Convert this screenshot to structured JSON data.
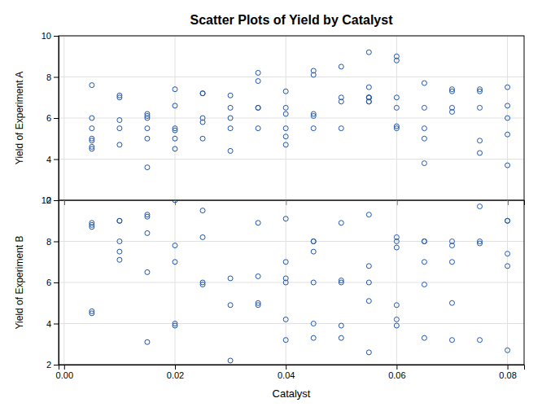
{
  "chart_data": [
    {
      "type": "scatter",
      "title": "Scatter Plots of Yield by Catalyst",
      "ylabel": "Yield of Experiment A",
      "x": [
        0.005,
        0.005,
        0.005,
        0.005,
        0.005,
        0.005,
        0.005,
        0.01,
        0.01,
        0.01,
        0.01,
        0.01,
        0.015,
        0.015,
        0.015,
        0.015,
        0.015,
        0.015,
        0.02,
        0.02,
        0.02,
        0.02,
        0.02,
        0.02,
        0.025,
        0.025,
        0.025,
        0.025,
        0.025,
        0.03,
        0.03,
        0.03,
        0.03,
        0.03,
        0.035,
        0.035,
        0.035,
        0.035,
        0.035,
        0.04,
        0.04,
        0.04,
        0.04,
        0.04,
        0.04,
        0.045,
        0.045,
        0.045,
        0.045,
        0.045,
        0.05,
        0.05,
        0.05,
        0.05,
        0.055,
        0.055,
        0.055,
        0.055,
        0.055,
        0.055,
        0.055,
        0.06,
        0.06,
        0.06,
        0.06,
        0.06,
        0.06,
        0.065,
        0.065,
        0.065,
        0.065,
        0.065,
        0.07,
        0.07,
        0.07,
        0.07,
        0.075,
        0.075,
        0.075,
        0.075,
        0.075,
        0.08,
        0.08,
        0.08,
        0.08,
        0.08
      ],
      "values": [
        7.6,
        6.0,
        5.5,
        5.0,
        4.9,
        4.6,
        4.5,
        7.1,
        7.0,
        5.9,
        5.5,
        4.7,
        6.2,
        6.1,
        6.0,
        5.5,
        5.0,
        3.6,
        7.4,
        6.6,
        5.5,
        5.4,
        5.0,
        4.5,
        7.2,
        7.2,
        6.0,
        5.8,
        5.0,
        7.1,
        6.5,
        6.0,
        5.5,
        4.4,
        8.2,
        7.8,
        6.5,
        6.5,
        5.5,
        7.3,
        6.5,
        6.2,
        5.5,
        5.1,
        4.7,
        8.3,
        8.1,
        6.2,
        6.1,
        5.5,
        8.5,
        7.0,
        6.8,
        5.5,
        9.2,
        7.5,
        7.0,
        7.0,
        7.0,
        6.8,
        6.8,
        9.0,
        8.8,
        7.0,
        6.5,
        5.6,
        5.5,
        7.7,
        6.5,
        5.5,
        5.0,
        3.8,
        7.4,
        7.3,
        6.5,
        6.3,
        7.4,
        7.3,
        6.5,
        4.9,
        4.3,
        7.5,
        6.6,
        6.0,
        5.2,
        3.7
      ],
      "color": "#2255aa",
      "marker": "open-circle",
      "xlim": [
        -0.001,
        0.083
      ],
      "xticks": [
        0.0,
        0.02,
        0.04,
        0.06,
        0.08
      ],
      "ylim": [
        2,
        10
      ],
      "yticks": [
        2,
        4,
        6,
        8,
        10
      ],
      "grid": true,
      "tick_labels": "y"
    },
    {
      "type": "scatter",
      "xlabel": "Catalyst",
      "ylabel": "Yield of Experiment B",
      "x": [
        0.005,
        0.005,
        0.005,
        0.005,
        0.005,
        0.01,
        0.01,
        0.01,
        0.01,
        0.01,
        0.015,
        0.015,
        0.015,
        0.015,
        0.015,
        0.02,
        0.02,
        0.02,
        0.02,
        0.02,
        0.025,
        0.025,
        0.025,
        0.025,
        0.03,
        0.03,
        0.03,
        0.035,
        0.035,
        0.035,
        0.035,
        0.04,
        0.04,
        0.04,
        0.04,
        0.04,
        0.04,
        0.045,
        0.045,
        0.045,
        0.045,
        0.045,
        0.045,
        0.05,
        0.05,
        0.05,
        0.05,
        0.05,
        0.055,
        0.055,
        0.055,
        0.055,
        0.055,
        0.06,
        0.06,
        0.06,
        0.06,
        0.06,
        0.06,
        0.065,
        0.065,
        0.065,
        0.065,
        0.065,
        0.07,
        0.07,
        0.07,
        0.07,
        0.07,
        0.075,
        0.075,
        0.075,
        0.075,
        0.08,
        0.08,
        0.08,
        0.08,
        0.08
      ],
      "values": [
        8.9,
        8.8,
        8.7,
        4.6,
        4.5,
        9.0,
        9.0,
        8.0,
        7.5,
        7.1,
        9.3,
        9.2,
        8.4,
        6.5,
        3.1,
        10.0,
        7.8,
        7.0,
        4.0,
        3.9,
        9.5,
        8.2,
        6.0,
        5.9,
        6.2,
        4.9,
        2.2,
        8.9,
        6.3,
        5.0,
        4.9,
        9.1,
        7.0,
        6.2,
        6.0,
        4.2,
        3.2,
        8.0,
        8.0,
        7.5,
        6.0,
        4.0,
        3.3,
        8.9,
        6.1,
        6.0,
        3.9,
        3.3,
        9.3,
        6.8,
        6.0,
        5.1,
        2.6,
        8.2,
        8.0,
        7.7,
        4.9,
        4.2,
        3.9,
        8.0,
        8.0,
        7.0,
        5.9,
        3.3,
        8.0,
        7.8,
        7.0,
        5.0,
        3.2,
        9.7,
        8.0,
        7.9,
        3.2,
        9.0,
        9.0,
        7.4,
        6.8,
        2.7
      ],
      "color": "#2255aa",
      "marker": "open-circle",
      "xlim": [
        -0.001,
        0.083
      ],
      "xticks": [
        {
          "value": 0.0,
          "label": "0.00"
        },
        {
          "value": 0.02,
          "label": "0.02"
        },
        {
          "value": 0.04,
          "label": "0.04"
        },
        {
          "value": 0.06,
          "label": "0.06"
        },
        {
          "value": 0.08,
          "label": "0.08"
        }
      ],
      "ylim": [
        2,
        10
      ],
      "yticks": [
        2,
        4,
        6,
        8,
        10
      ],
      "grid": true
    }
  ]
}
